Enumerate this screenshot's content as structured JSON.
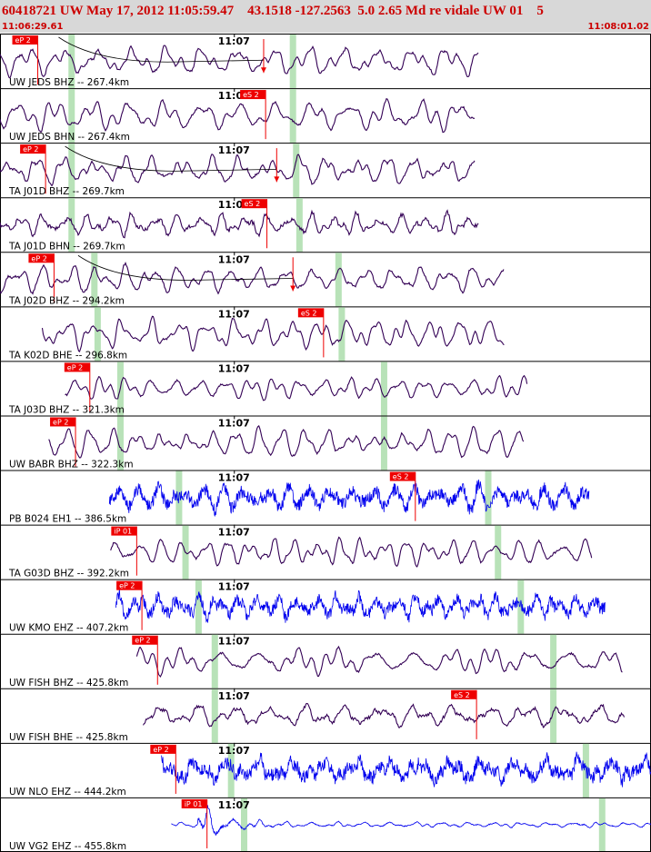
{
  "header": {
    "title": "60418721 UW May 17, 2012 11:05:59.47    43.1518 -127.2563  5.0 2.65 Md re vidale UW 01    5",
    "time_start": "11:06:29.61",
    "time_end": "11:08:01.02"
  },
  "colors": {
    "trace_short_period": "#330055",
    "trace_broadband": "#0000ee",
    "pick": "#ee0000",
    "window": "#b8e2b8",
    "header_bg": "#d8d8d8",
    "header_text": "#cc0000"
  },
  "chart_data": {
    "type": "line",
    "title": "",
    "xlabel": "",
    "ylabel": "",
    "xlim": [
      "11:06:29.61",
      "11:08:01.02"
    ],
    "minute_tick_label": "11:07",
    "series": [
      {
        "label": "UW JEDS BHZ -- 267.4km",
        "pick": "eP 2",
        "color": "short_period",
        "start": 0.0,
        "end": 0.735,
        "pick_x": 0.058,
        "minute_x": 0.36,
        "windows": [
          0.11,
          0.45
        ],
        "arrow_x": 0.405,
        "curve_start": 0.09,
        "density": 22,
        "noise": 0.1,
        "amp": 0.8
      },
      {
        "label": "UW JEDS BHN -- 267.4km",
        "pick": "eS 2",
        "color": "short_period",
        "start": 0.0,
        "end": 0.73,
        "pick_x": 0.408,
        "minute_x": 0.36,
        "windows": [
          0.11,
          0.45
        ],
        "density": 20,
        "noise": 0.1,
        "amp": 0.85
      },
      {
        "label": "TA J01D BHZ -- 269.7km",
        "pick": "eP 2",
        "color": "short_period",
        "start": 0.0,
        "end": 0.73,
        "pick_x": 0.07,
        "minute_x": 0.36,
        "windows": [
          0.11,
          0.455
        ],
        "arrow_x": 0.425,
        "curve_start": 0.1,
        "density": 24,
        "noise": 0.12,
        "amp": 0.8
      },
      {
        "label": "TA J01D BHN -- 269.7km",
        "pick": "eS 2",
        "color": "short_period",
        "start": 0.0,
        "end": 0.735,
        "pick_x": 0.41,
        "minute_x": 0.36,
        "windows": [
          0.11,
          0.46
        ],
        "density": 30,
        "noise": 0.3,
        "amp": 0.6
      },
      {
        "label": "TA J02D BHZ -- 294.2km",
        "pick": "eP 2",
        "color": "short_period",
        "start": 0.0,
        "end": 0.775,
        "pick_x": 0.083,
        "minute_x": 0.36,
        "windows": [
          0.145,
          0.52
        ],
        "arrow_x": 0.45,
        "curve_start": 0.12,
        "density": 24,
        "noise": 0.12,
        "amp": 0.75
      },
      {
        "label": "TA K02D BHE -- 296.8km",
        "pick": "eS 2",
        "color": "short_period",
        "start": 0.065,
        "end": 0.775,
        "pick_x": 0.497,
        "minute_x": 0.36,
        "windows": [
          0.15,
          0.525
        ],
        "density": 22,
        "noise": 0.08,
        "amp": 0.85
      },
      {
        "label": "TA J03D BHZ -- 321.3km",
        "pick": "eP 2",
        "color": "short_period",
        "start": 0.1,
        "end": 0.81,
        "pick_x": 0.138,
        "minute_x": 0.36,
        "windows": [
          0.185,
          0.59
        ],
        "density": 24,
        "noise": 0.12,
        "amp": 0.6
      },
      {
        "label": "UW BABR BHZ -- 322.3km",
        "pick": "eP 2",
        "color": "short_period",
        "start": 0.075,
        "end": 0.805,
        "pick_x": 0.116,
        "minute_x": 0.36,
        "windows": [
          0.185,
          0.59
        ],
        "density": 24,
        "noise": 0.1,
        "amp": 0.8
      },
      {
        "label": "PB B024 EH1 -- 386.5km",
        "pick": "eS 2",
        "color": "broadband",
        "start": 0.168,
        "end": 0.905,
        "pick_x": 0.638,
        "minute_x": 0.36,
        "windows": [
          0.275,
          0.75
        ],
        "density": 26,
        "noise": 0.9,
        "amp": 0.65
      },
      {
        "label": "TA G03D BHZ -- 392.2km",
        "pick": "iP 01",
        "color": "short_period",
        "start": 0.17,
        "end": 0.91,
        "pick_x": 0.21,
        "minute_x": 0.36,
        "windows": [
          0.285,
          0.765
        ],
        "density": 24,
        "noise": 0.12,
        "amp": 0.75
      },
      {
        "label": "UW KMO EHZ -- 407.2km",
        "pick": "eP 2",
        "color": "broadband",
        "start": 0.178,
        "end": 0.93,
        "pick_x": 0.218,
        "minute_x": 0.36,
        "windows": [
          0.305,
          0.8
        ],
        "density": 26,
        "noise": 0.9,
        "amp": 0.6
      },
      {
        "label": "UW FISH BHZ -- 425.8km",
        "pick": "eP 2",
        "color": "short_period",
        "start": 0.21,
        "end": 0.957,
        "pick_x": 0.242,
        "minute_x": 0.36,
        "windows": [
          0.33,
          0.85
        ],
        "density": 24,
        "noise": 0.12,
        "amp": 0.7
      },
      {
        "label": "UW FISH BHE -- 425.8km",
        "pick": "eS 2",
        "color": "short_period",
        "start": 0.22,
        "end": 0.96,
        "pick_x": 0.732,
        "minute_x": 0.36,
        "windows": [
          0.33,
          0.85
        ],
        "density": 24,
        "noise": 0.25,
        "amp": 0.6
      },
      {
        "label": "UW NLO EHZ -- 444.2km",
        "pick": "eP 2",
        "color": "broadband",
        "start": 0.248,
        "end": 1.0,
        "pick_x": 0.27,
        "minute_x": 0.36,
        "windows": [
          0.355,
          0.9
        ],
        "density": 26,
        "noise": 0.9,
        "amp": 0.65
      },
      {
        "label": "UW VG2 EHZ -- 455.8km",
        "pick": "iP 01",
        "color": "broadband",
        "start": 0.263,
        "end": 1.0,
        "pick_x": 0.318,
        "minute_x": 0.36,
        "windows": [
          0.375,
          0.925
        ],
        "burst": true,
        "density": 30,
        "noise": 0.25,
        "amp": 0.15
      }
    ]
  }
}
